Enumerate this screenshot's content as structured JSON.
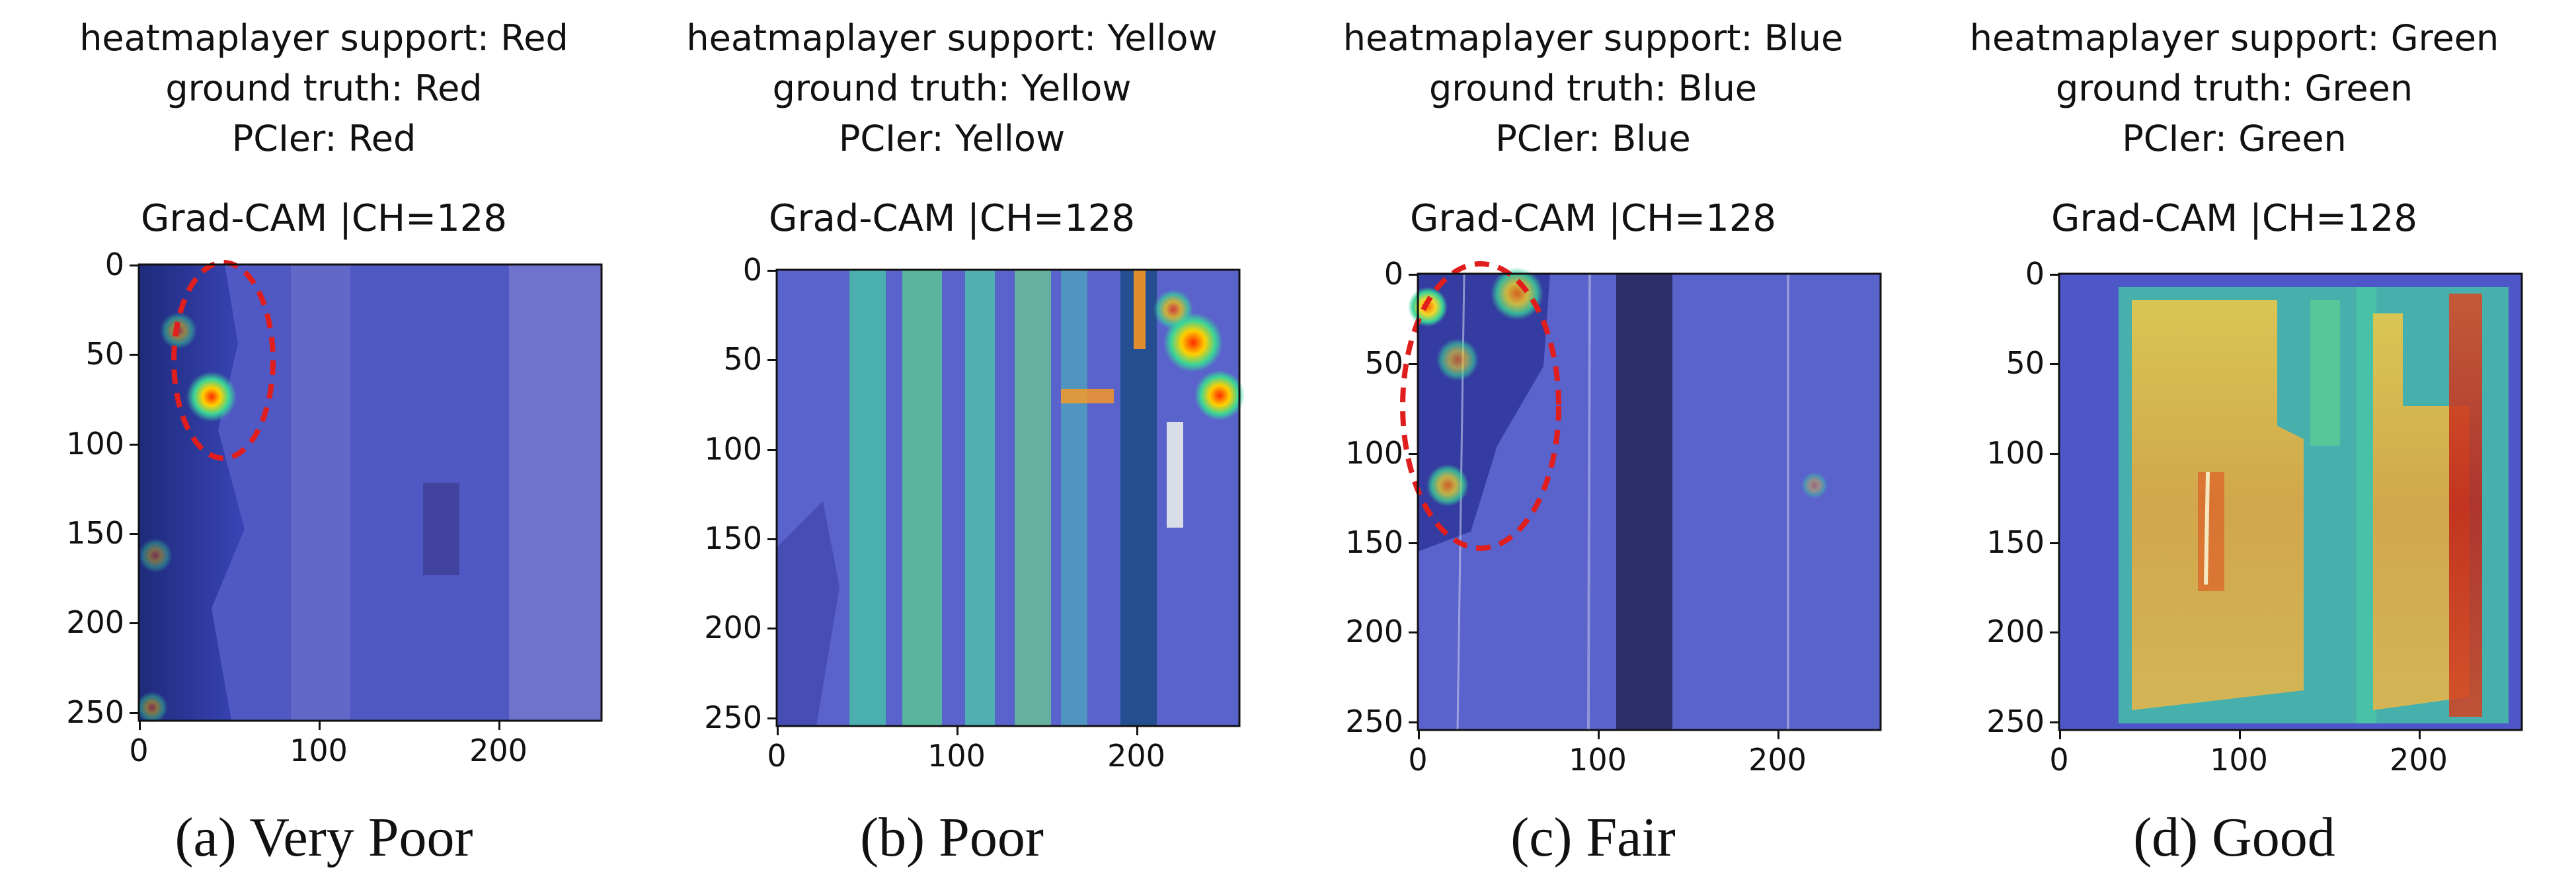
{
  "panels": [
    {
      "header": [
        "heatmaplayer support: Red",
        "ground truth: Red",
        "PCIer: Red"
      ],
      "plot_title": "Grad-CAM |CH=128",
      "caption": "(a) Very Poor",
      "y_ticks": [
        "0",
        "50",
        "100",
        "150",
        "200",
        "250"
      ],
      "x_ticks": [
        "0",
        "100",
        "200"
      ],
      "highlight_ellipse": true
    },
    {
      "header": [
        "heatmaplayer support: Yellow",
        "ground truth: Yellow",
        "PCIer: Yellow"
      ],
      "plot_title": "Grad-CAM |CH=128",
      "caption": "(b) Poor",
      "y_ticks": [
        "0",
        "50",
        "100",
        "150",
        "200",
        "250"
      ],
      "x_ticks": [
        "0",
        "100",
        "200"
      ],
      "highlight_ellipse": false
    },
    {
      "header": [
        "heatmaplayer support: Blue",
        "ground truth: Blue",
        "PCIer: Blue"
      ],
      "plot_title": "Grad-CAM |CH=128",
      "caption": "(c) Fair",
      "y_ticks": [
        "0",
        "50",
        "100",
        "150",
        "200",
        "250"
      ],
      "x_ticks": [
        "0",
        "100",
        "200"
      ],
      "highlight_ellipse": true
    },
    {
      "header": [
        "heatmaplayer support: Green",
        "ground truth: Green",
        "PCIer: Green"
      ],
      "plot_title": "Grad-CAM |CH=128",
      "caption": "(d) Good",
      "y_ticks": [
        "0",
        "50",
        "100",
        "150",
        "200",
        "250"
      ],
      "x_ticks": [
        "0",
        "100",
        "200"
      ],
      "highlight_ellipse": false
    }
  ],
  "colors": {
    "cam_background": "#4a4fc4",
    "ellipse": "#e01e1e"
  }
}
